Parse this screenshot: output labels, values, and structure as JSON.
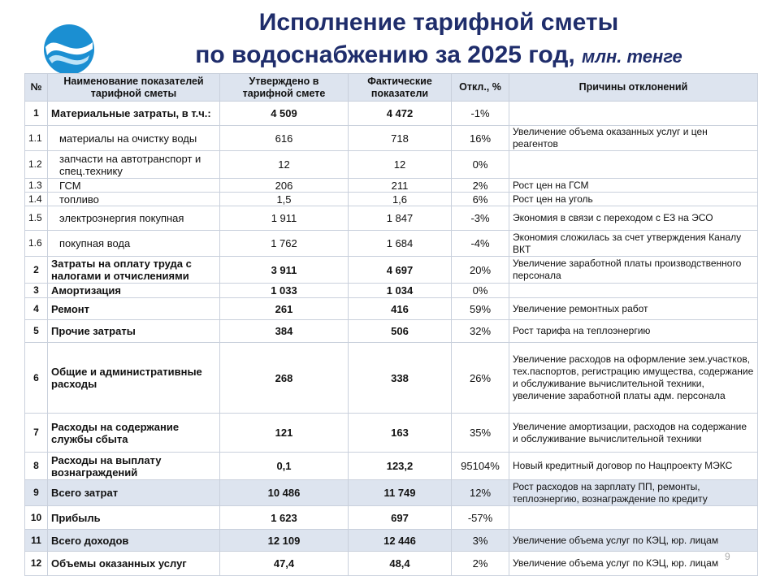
{
  "header": {
    "title_line1": "Исполнение тарифной сметы",
    "title_line2": "по водоснабжению за 2025 год,",
    "units": "млн. тенге"
  },
  "table": {
    "columns": [
      "№",
      "Наименование показателей тарифной сметы",
      "Утверждено в тарифной смете",
      "Фактические показатели",
      "Откл., %",
      "Причины отклонений"
    ],
    "rows": [
      [
        "1",
        "Материальные затраты, в т.ч.:",
        "4 509",
        "4 472",
        "-1%",
        ""
      ],
      [
        "1.1",
        "материалы на очистку воды",
        "616",
        "718",
        "16%",
        "Увеличение объема оказанных услуг и цен реагентов"
      ],
      [
        "1.2",
        "запчасти на автотранспорт и спец.технику",
        "12",
        "12",
        "0%",
        ""
      ],
      [
        "1.3",
        "ГСМ",
        "206",
        "211",
        "2%",
        "Рост цен на ГСМ"
      ],
      [
        "1.4",
        "топливо",
        "1,5",
        "1,6",
        "6%",
        "Рост цен на уголь"
      ],
      [
        "1.5",
        "электроэнергия покупная",
        "1 911",
        "1 847",
        "-3%",
        "Экономия в связи с переходом с ЕЗ на ЭСО"
      ],
      [
        "1.6",
        "покупная вода",
        "1 762",
        "1 684",
        "-4%",
        "Экономия сложилась за счет утверждения Каналу ВКТ"
      ],
      [
        "2",
        "Затраты на оплату труда с налогами и отчислениями",
        "3 911",
        "4 697",
        "20%",
        "Увеличение заработной платы производственного персонала"
      ],
      [
        "3",
        "Амортизация",
        "1 033",
        "1 034",
        "0%",
        ""
      ],
      [
        "4",
        "Ремонт",
        "261",
        "416",
        "59%",
        "Увеличение ремонтных работ"
      ],
      [
        "5",
        "Прочие затраты",
        "384",
        "506",
        "32%",
        "Рост тарифа на теплоэнергию"
      ],
      [
        "6",
        "Общие и административные расходы",
        "268",
        "338",
        "26%",
        "Увеличение расходов на оформление зем.участков, тех.паспортов, регистрацию имущества, содержание и обслуживание вычислительной техники, увеличение заработной платы адм. персонала"
      ],
      [
        "7",
        "Расходы на содержание службы сбыта",
        "121",
        "163",
        "35%",
        "Увеличение амортизации, расходов на содержание и обслуживание вычислительной техники"
      ],
      [
        "8",
        "Расходы на выплату вознаграждений",
        "0,1",
        "123,2",
        "95104%",
        "Новый кредитный договор по Нацпроекту МЭКС"
      ],
      [
        "9",
        "Всего затрат",
        "10 486",
        "11 749",
        "12%",
        "Рост расходов на зарплату ПП, ремонты, теплоэнергию, вознаграждение по кредиту"
      ],
      [
        "10",
        "Прибыль",
        "1 623",
        "697",
        "-57%",
        ""
      ],
      [
        "11",
        "Всего доходов",
        "12 109",
        "12 446",
        "3%",
        "Увеличение объема услуг по КЭЦ, юр. лицам"
      ],
      [
        "12",
        "Объемы оказанных услуг",
        "47,4",
        "48,4",
        "2%",
        "Увеличение объема услуг по КЭЦ, юр. лицам"
      ]
    ]
  },
  "page_number": "9"
}
